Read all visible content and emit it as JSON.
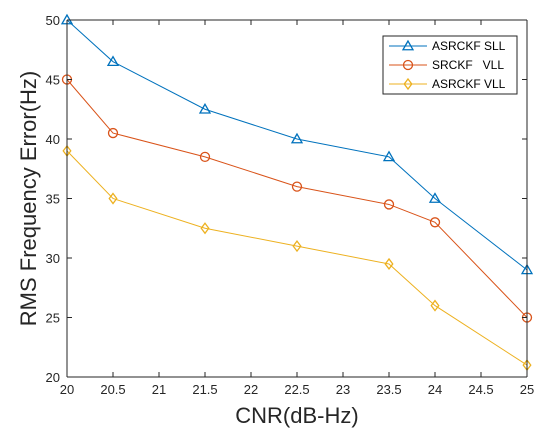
{
  "chart_data": {
    "type": "line",
    "title": "",
    "xlabel": "CNR(dB-Hz)",
    "ylabel": "RMS Frequency Error(Hz)",
    "xlim": [
      20,
      25
    ],
    "ylim": [
      20,
      50
    ],
    "xticks": [
      "20",
      "20.5",
      "21",
      "21.5",
      "22",
      "22.5",
      "23",
      "23.5",
      "24",
      "24.5",
      "25"
    ],
    "yticks": [
      "20",
      "25",
      "30",
      "35",
      "40",
      "45",
      "50"
    ],
    "grid": false,
    "legend_position": "top-right",
    "x": [
      20,
      20.5,
      21.5,
      22.5,
      23.5,
      24,
      25
    ],
    "series": [
      {
        "name": "ASRCKF SLL",
        "color": "#0072BD",
        "marker": "triangle",
        "values": [
          50,
          46.5,
          42.5,
          40,
          38.5,
          35,
          29
        ]
      },
      {
        "name": "SRCKF   VLL",
        "color": "#D95319",
        "marker": "circle",
        "values": [
          45,
          40.5,
          38.5,
          36,
          34.5,
          33,
          25
        ]
      },
      {
        "name": "ASRCKF VLL",
        "color": "#EDB120",
        "marker": "diamond",
        "values": [
          39,
          35,
          32.5,
          31,
          29.5,
          26,
          21
        ]
      }
    ]
  }
}
